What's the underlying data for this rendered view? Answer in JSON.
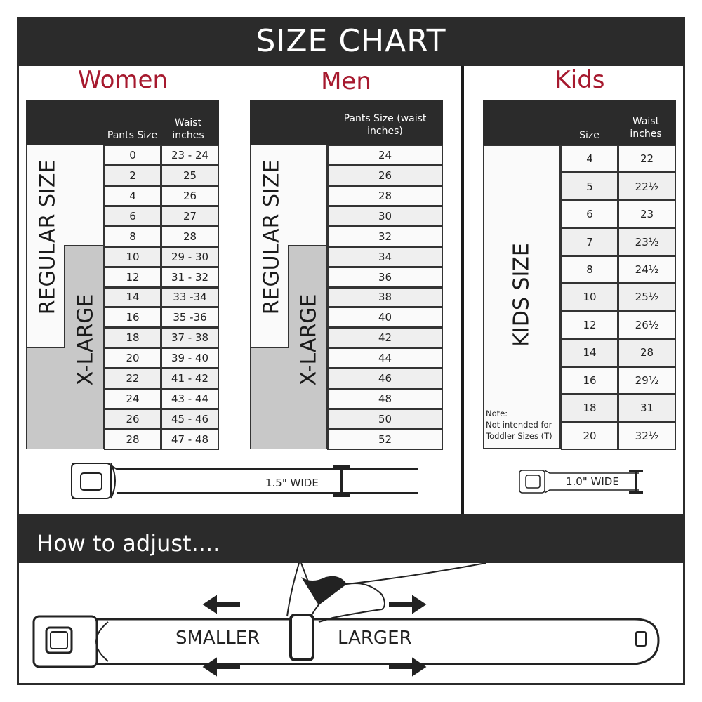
{
  "title": "SIZE CHART",
  "women": {
    "title": "Women",
    "col1": "Pants Size",
    "col2": "Waist inches",
    "regular_label": "REGULAR SIZE",
    "xl_label": "X-LARGE",
    "rows": [
      [
        "0",
        "23 - 24"
      ],
      [
        "2",
        "25"
      ],
      [
        "4",
        "26"
      ],
      [
        "6",
        "27"
      ],
      [
        "8",
        "28"
      ],
      [
        "10",
        "29 - 30"
      ],
      [
        "12",
        "31 - 32"
      ],
      [
        "14",
        "33 -34"
      ],
      [
        "16",
        "35 -36"
      ],
      [
        "18",
        "37 - 38"
      ],
      [
        "20",
        "39 - 40"
      ],
      [
        "22",
        "41 - 42"
      ],
      [
        "24",
        "43 - 44"
      ],
      [
        "26",
        "45 - 46"
      ],
      [
        "28",
        "47 - 48"
      ]
    ],
    "belt_width": "1.5\" WIDE"
  },
  "men": {
    "title": "Men",
    "col1": "Pants Size (waist inches)",
    "regular_label": "REGULAR SIZE",
    "xl_label": "X-LARGE",
    "rows": [
      "24",
      "26",
      "28",
      "30",
      "32",
      "34",
      "36",
      "38",
      "40",
      "42",
      "44",
      "46",
      "48",
      "50",
      "52"
    ]
  },
  "kids": {
    "title": "Kids",
    "col1": "Size",
    "col2": "Waist inches",
    "label": "KIDS SIZE",
    "note_title": "Note:",
    "note_body": "Not intended for Toddler Sizes (T)",
    "rows": [
      [
        "4",
        "22"
      ],
      [
        "5",
        "22½"
      ],
      [
        "6",
        "23"
      ],
      [
        "7",
        "23½"
      ],
      [
        "8",
        "24½"
      ],
      [
        "10",
        "25½"
      ],
      [
        "12",
        "26½"
      ],
      [
        "14",
        "28"
      ],
      [
        "16",
        "29½"
      ],
      [
        "18",
        "31"
      ],
      [
        "20",
        "32½"
      ]
    ],
    "belt_width": "1.0\" WIDE"
  },
  "adjust": {
    "title": "How to adjust....",
    "smaller": "SMALLER",
    "larger": "LARGER"
  },
  "colors": {
    "accent": "#a6192e",
    "dark": "#2b2b2b",
    "xl_gray": "#c8c8c8"
  }
}
